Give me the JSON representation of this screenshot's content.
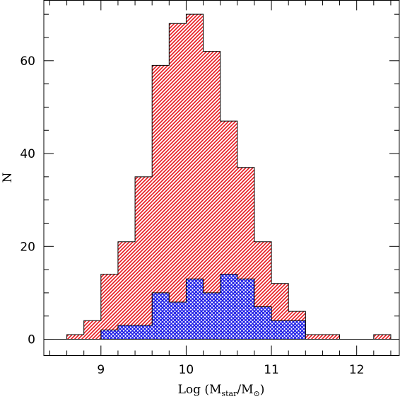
{
  "chart_data": {
    "type": "bar",
    "subtype": "histogram",
    "x_range": [
      8.33,
      12.5
    ],
    "y_range": [
      -3.5,
      73
    ],
    "x_ticks": [
      9,
      10,
      11,
      12
    ],
    "y_ticks": [
      0,
      20,
      40,
      60
    ],
    "xlabel": {
      "prefix": "Log (M",
      "sub1": "star",
      "mid": "/M",
      "sub2": "⊙",
      "suffix": ")"
    },
    "ylabel": "N",
    "bin_width": 0.2,
    "series": [
      {
        "color": "#e8151b",
        "hatch": "diagonal",
        "bins": [
          {
            "left": 8.6,
            "count": 1
          },
          {
            "left": 8.8,
            "count": 4
          },
          {
            "left": 9.0,
            "count": 14
          },
          {
            "left": 9.2,
            "count": 21
          },
          {
            "left": 9.4,
            "count": 35
          },
          {
            "left": 9.6,
            "count": 59
          },
          {
            "left": 9.8,
            "count": 68
          },
          {
            "left": 10.0,
            "count": 70
          },
          {
            "left": 10.2,
            "count": 62
          },
          {
            "left": 10.4,
            "count": 47
          },
          {
            "left": 10.6,
            "count": 37
          },
          {
            "left": 10.8,
            "count": 21
          },
          {
            "left": 11.0,
            "count": 12
          },
          {
            "left": 11.2,
            "count": 6
          },
          {
            "left": 11.4,
            "count": 1
          },
          {
            "left": 11.6,
            "count": 1
          },
          {
            "left": 12.2,
            "count": 1
          }
        ]
      },
      {
        "color": "#1a1ae6",
        "hatch": "cross",
        "bins": [
          {
            "left": 9.0,
            "count": 2
          },
          {
            "left": 9.2,
            "count": 3
          },
          {
            "left": 9.4,
            "count": 3
          },
          {
            "left": 9.6,
            "count": 10
          },
          {
            "left": 9.8,
            "count": 8
          },
          {
            "left": 10.0,
            "count": 13
          },
          {
            "left": 10.2,
            "count": 10
          },
          {
            "left": 10.4,
            "count": 14
          },
          {
            "left": 10.6,
            "count": 13
          },
          {
            "left": 10.8,
            "count": 7
          },
          {
            "left": 11.0,
            "count": 4
          },
          {
            "left": 11.2,
            "count": 4
          }
        ]
      }
    ],
    "zero_line": true,
    "grid": false
  }
}
